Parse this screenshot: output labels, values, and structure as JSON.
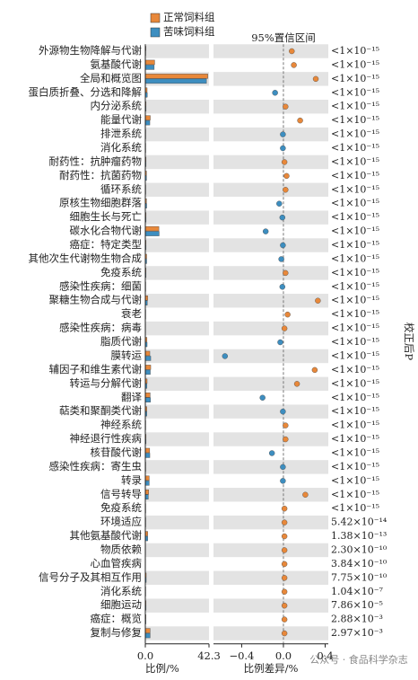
{
  "chart_data": {
    "type": "bar",
    "title": "95%置信区间",
    "categories": [
      "外源物生物降解与代谢",
      "氨基酸代谢",
      "全局和概览图",
      "蛋白质折叠、分选和降解",
      "内分泌系统",
      "能量代谢",
      "排泄系统",
      "消化系统",
      "耐药性：抗肿瘤药物",
      "耐药性：抗菌药物",
      "循环系统",
      "原核生物细胞群落",
      "细胞生长与死亡",
      "碳水化合物代谢",
      "癌症：特定类型",
      "其他次生代谢物生物合成",
      "免疫系统",
      "感染性疾病：细菌",
      "聚糖生物合成与代谢",
      "衰老",
      "感染性疾病：病毒",
      "脂质代谢",
      "膜转运",
      "辅因子和维生素代谢",
      "转运与分解代谢",
      "翻译",
      "萜类和聚酮类代谢",
      "神经系统",
      "神经退行性疾病",
      "核苷酸代谢",
      "感染性疾病：寄生虫",
      "转录",
      "信号转导",
      "免疫系统",
      "环境适应",
      "其他氨基酸代谢",
      "物质依赖",
      "心血管疾病",
      "信号分子及其相互作用",
      "消化系统",
      "细胞运动",
      "癌症：概览",
      "复制与修复"
    ],
    "series": [
      {
        "name": "正常饲料组",
        "color": "#e8883a",
        "values": [
          0.4,
          6.2,
          41.5,
          1.2,
          0.5,
          3.3,
          0.3,
          0.3,
          0.5,
          0.8,
          0.3,
          0.8,
          0.5,
          9.0,
          0.5,
          0.9,
          0.5,
          0.3,
          1.6,
          0.3,
          0.2,
          1.1,
          3.0,
          3.6,
          1.2,
          3.2,
          1.0,
          0.3,
          0.5,
          2.9,
          0.3,
          2.6,
          2.2,
          0.3,
          0.3,
          1.6,
          0.2,
          0.2,
          0.6,
          0.3,
          0.5,
          0.4,
          3.2
        ]
      },
      {
        "name": "苦味饲料组",
        "color": "#3d8ec0",
        "values": [
          0.3,
          5.9,
          40.6,
          1.3,
          0.5,
          3.0,
          0.3,
          0.3,
          0.5,
          0.8,
          0.3,
          0.9,
          0.5,
          9.2,
          0.5,
          0.9,
          0.5,
          0.3,
          1.3,
          0.3,
          0.2,
          1.2,
          3.6,
          3.3,
          1.1,
          3.4,
          1.0,
          0.3,
          0.5,
          3.0,
          0.3,
          2.6,
          2.0,
          0.3,
          0.3,
          1.6,
          0.2,
          0.2,
          0.6,
          0.3,
          0.5,
          0.4,
          3.2
        ]
      }
    ],
    "xlim": [
      0,
      42.3
    ],
    "xticks": [
      {
        "value": 0,
        "label": "0.0"
      },
      42.3
    ],
    "xlabel": "比例/%",
    "difference": {
      "values": [
        0.08,
        0.1,
        0.31,
        -0.08,
        0.02,
        0.16,
        -0.005,
        -0.005,
        0.01,
        0.03,
        0.02,
        -0.04,
        -0.01,
        -0.17,
        -0.005,
        -0.02,
        0.02,
        -0.01,
        0.33,
        0.04,
        0.01,
        -0.03,
        -0.56,
        0.3,
        0.13,
        -0.2,
        -0.005,
        0.02,
        0.02,
        -0.11,
        -0.005,
        -0.005,
        0.21,
        0.01,
        0.01,
        0.01,
        0.01,
        0.01,
        0.01,
        0.01,
        0.01,
        0.01,
        0.01
      ],
      "xlim": [
        -0.67,
        0.43
      ],
      "xticks": [
        {
          "value": -0.4,
          "label": "−0.4"
        },
        {
          "value": 0,
          "label": "0.0"
        },
        0.4
      ],
      "xlabel": "比例差异/%"
    },
    "p_label": "校正后P",
    "p_values": [
      "<1×10⁻¹⁵",
      "<1×10⁻¹⁵",
      "<1×10⁻¹⁵",
      "<1×10⁻¹⁵",
      "<1×10⁻¹⁵",
      "<1×10⁻¹⁵",
      "<1×10⁻¹⁵",
      "<1×10⁻¹⁵",
      "<1×10⁻¹⁵",
      "<1×10⁻¹⁵",
      "<1×10⁻¹⁵",
      "<1×10⁻¹⁵",
      "<1×10⁻¹⁵",
      "<1×10⁻¹⁵",
      "<1×10⁻¹⁵",
      "<1×10⁻¹⁵",
      "<1×10⁻¹⁵",
      "<1×10⁻¹⁵",
      "<1×10⁻¹⁵",
      "<1×10⁻¹⁵",
      "<1×10⁻¹⁵",
      "<1×10⁻¹⁵",
      "<1×10⁻¹⁵",
      "<1×10⁻¹⁵",
      "<1×10⁻¹⁵",
      "<1×10⁻¹⁵",
      "<1×10⁻¹⁵",
      "<1×10⁻¹⁵",
      "<1×10⁻¹⁵",
      "<1×10⁻¹⁵",
      "<1×10⁻¹⁵",
      "<1×10⁻¹⁵",
      "<1×10⁻¹⁵",
      "<1×10⁻¹⁵",
      "5.42×10⁻¹⁴",
      "1.38×10⁻¹³",
      "2.30×10⁻¹⁰",
      "3.84×10⁻¹⁰",
      "7.75×10⁻¹⁰",
      "1.04×10⁻⁷",
      "7.86×10⁻⁵",
      "2.88×10⁻³",
      "2.97×10⁻³"
    ]
  },
  "watermark": "公众号 · 食品科学杂志"
}
